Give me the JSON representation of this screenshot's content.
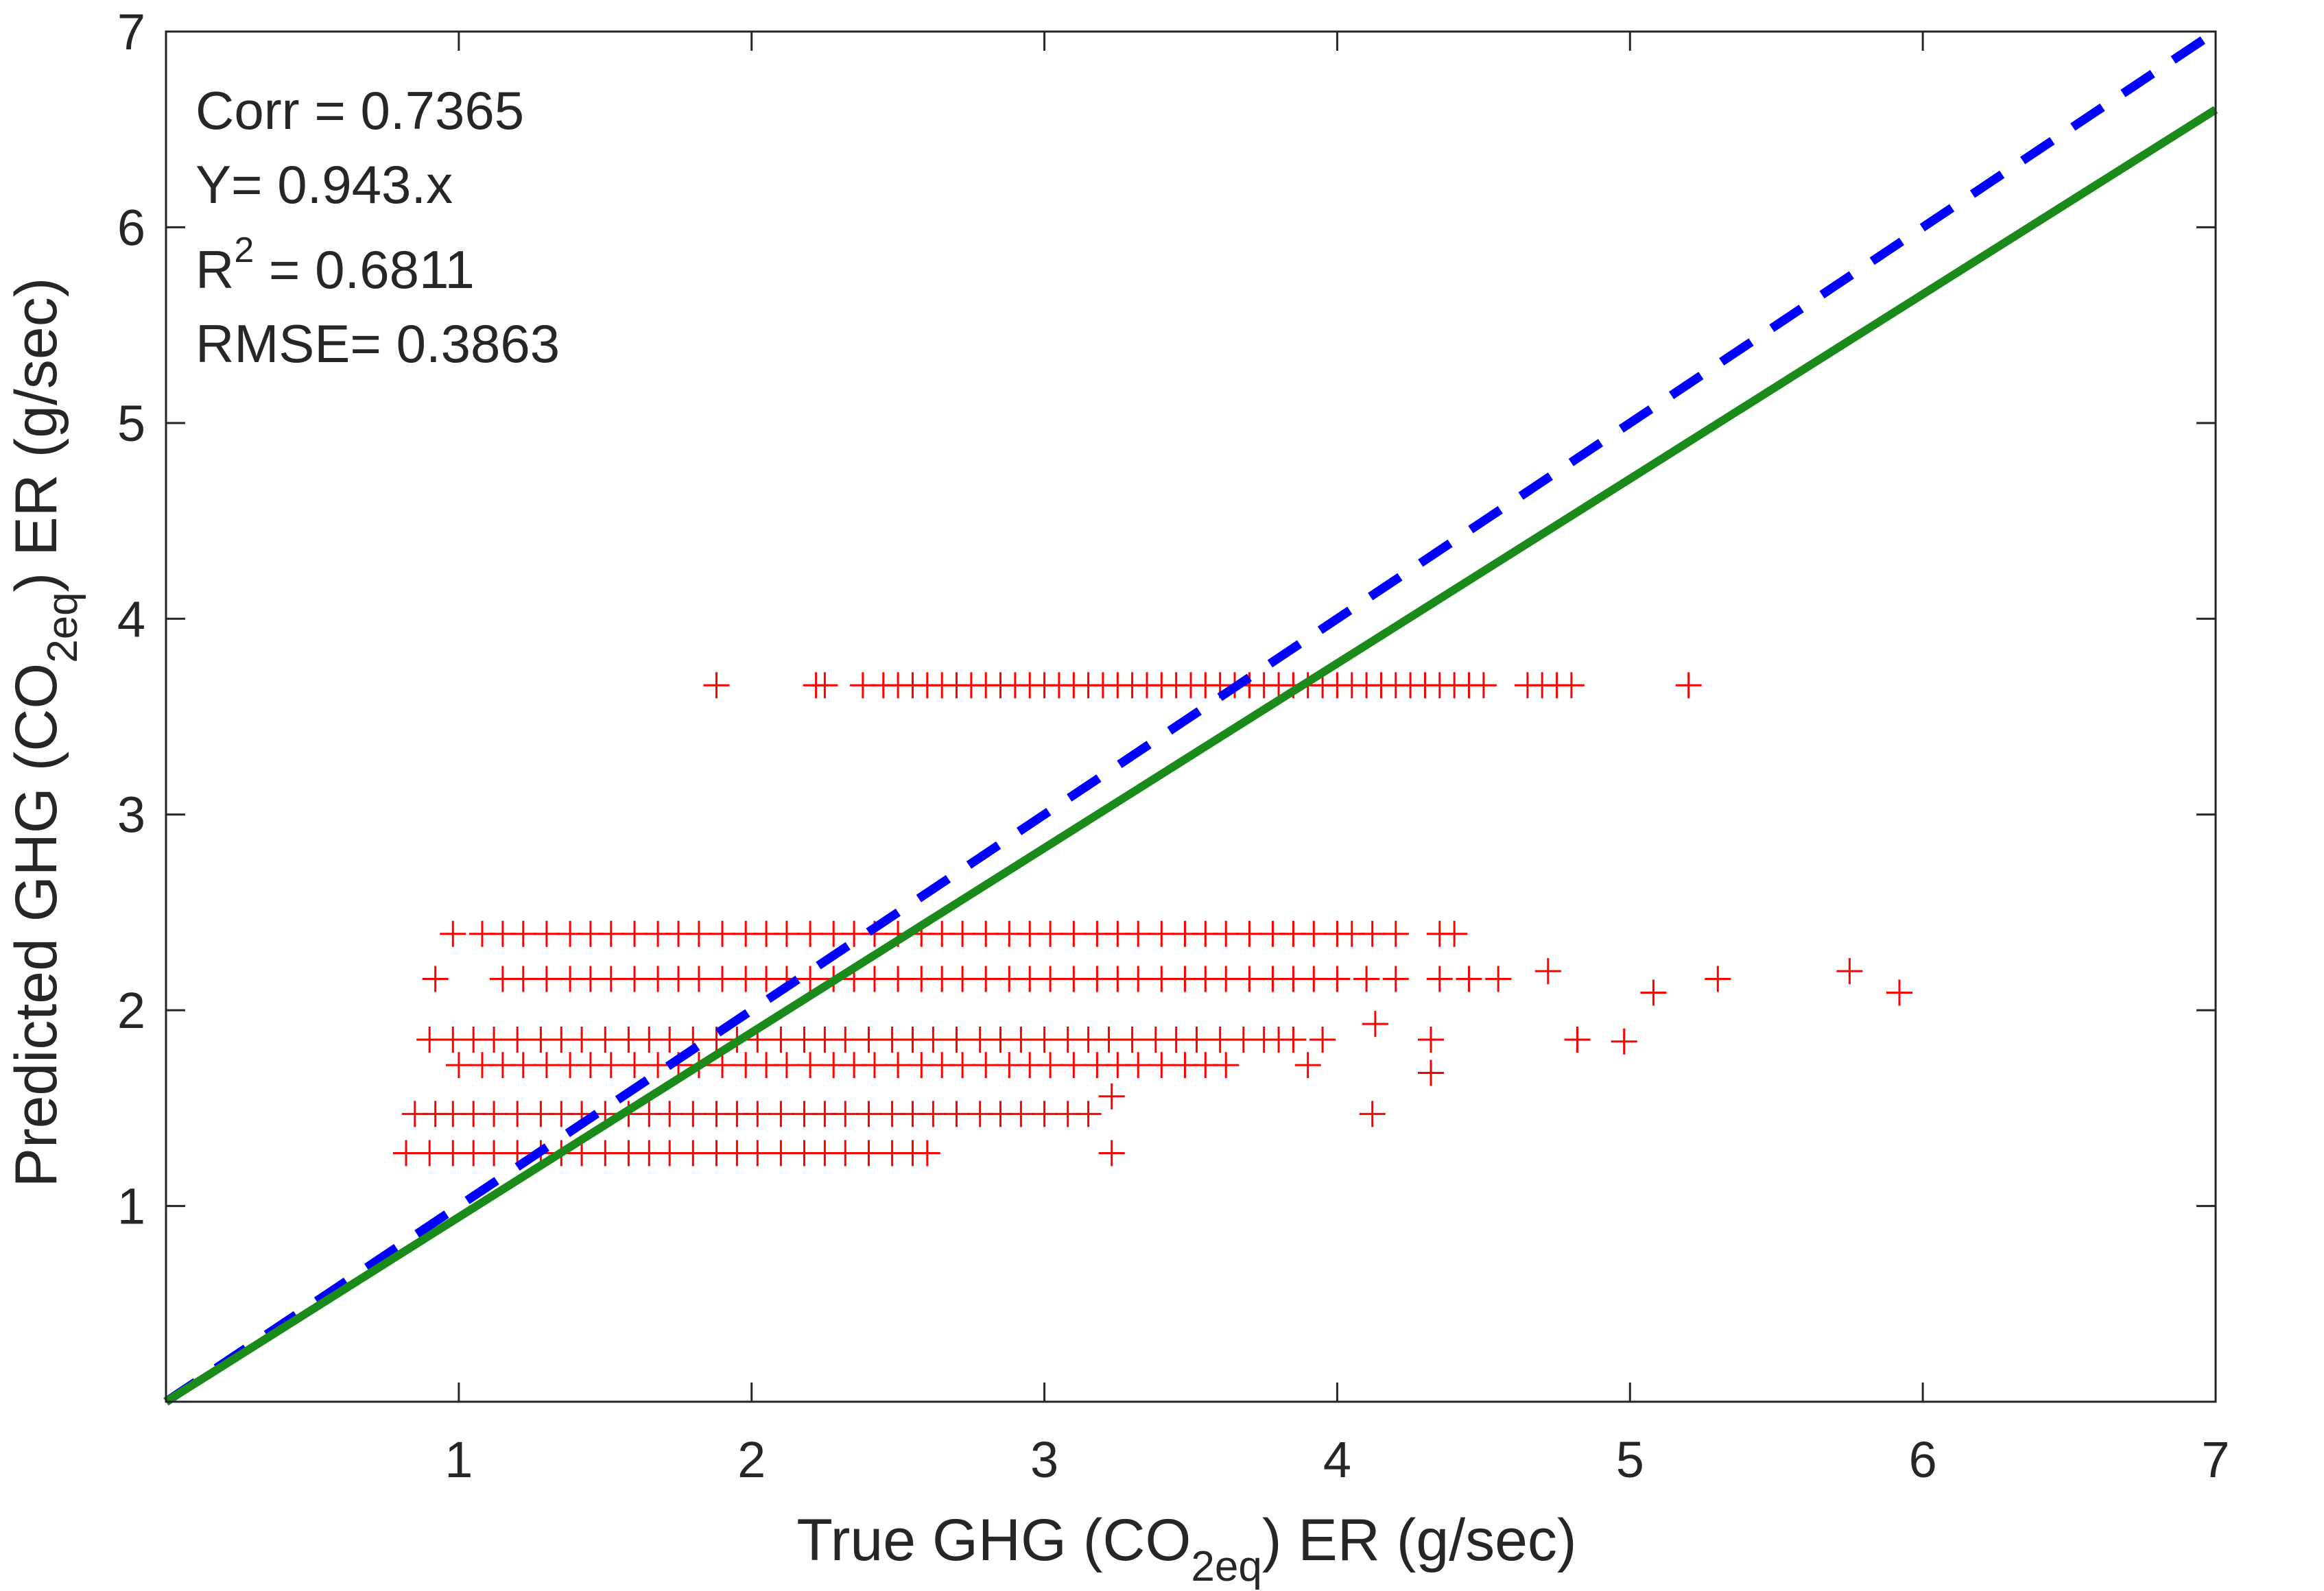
{
  "chart_data": {
    "type": "scatter",
    "title": "",
    "xlabel": {
      "pre": "True GHG (CO",
      "sub": "2eq",
      "post": ") ER (g/sec)"
    },
    "ylabel": {
      "pre": "Predicted GHG (CO",
      "sub": "2eq",
      "post": ") ER (g/sec)"
    },
    "xlim": [
      0,
      7
    ],
    "ylim": [
      0,
      7
    ],
    "xticks": [
      1,
      2,
      3,
      4,
      5,
      6,
      7
    ],
    "yticks": [
      1,
      2,
      3,
      4,
      5,
      6,
      7
    ],
    "grid": false,
    "annotations": {
      "corr": "Corr = 0.7365",
      "fit": "Y= 0.943.x",
      "r2_pre": "R",
      "r2_sup": "2",
      "r2_post": " = 0.6811",
      "rmse": "RMSE= 0.3863"
    },
    "lines": [
      {
        "style": "dashed",
        "color": "#0000ff",
        "x": [
          0,
          7
        ],
        "y": [
          0,
          7
        ]
      },
      {
        "style": "solid",
        "color": "#1a8a1a",
        "x": [
          0,
          7
        ],
        "y": [
          0,
          6.601
        ]
      }
    ],
    "marker_color": "#ff0000",
    "series": [
      {
        "marker": "plus",
        "x": [
          1.88,
          2.22,
          2.25,
          2.38,
          2.45,
          2.5,
          2.55,
          2.6,
          2.65,
          2.7,
          2.75,
          2.8,
          2.85,
          2.9,
          2.95,
          3.0,
          3.05,
          3.1,
          3.15,
          3.2,
          3.25,
          3.3,
          3.35,
          3.4,
          3.45,
          3.5,
          3.55,
          3.6,
          3.65,
          3.7,
          3.75,
          3.8,
          3.85,
          3.9,
          3.95,
          4.0,
          4.05,
          4.1,
          4.15,
          4.2,
          4.25,
          4.3,
          4.35,
          4.4,
          4.45,
          4.5,
          4.65,
          4.7,
          4.75,
          4.8,
          5.2,
          0.98,
          1.08,
          1.15,
          1.22,
          1.3,
          1.38,
          1.45,
          1.52,
          1.6,
          1.68,
          1.75,
          1.82,
          1.9,
          1.98,
          2.05,
          2.12,
          2.2,
          2.28,
          2.35,
          2.42,
          2.5,
          2.58,
          2.65,
          2.72,
          2.8,
          2.88,
          2.95,
          3.02,
          3.1,
          3.18,
          3.25,
          3.32,
          3.4,
          3.48,
          3.55,
          3.62,
          3.7,
          3.78,
          3.85,
          3.92,
          4.0,
          4.05,
          4.12,
          4.2,
          4.35,
          4.4,
          0.92,
          1.15,
          1.22,
          1.3,
          1.38,
          1.45,
          1.52,
          1.6,
          1.68,
          1.75,
          1.82,
          1.9,
          1.98,
          2.05,
          2.12,
          2.2,
          2.28,
          2.35,
          2.42,
          2.5,
          2.58,
          2.65,
          2.72,
          2.8,
          2.88,
          2.95,
          3.02,
          3.1,
          3.18,
          3.25,
          3.32,
          3.4,
          3.48,
          3.55,
          3.62,
          3.7,
          3.78,
          3.85,
          3.92,
          4.0,
          4.1,
          4.2,
          4.35,
          4.45,
          4.55,
          4.72,
          5.08,
          5.3,
          5.75,
          5.92,
          0.9,
          0.98,
          1.05,
          1.12,
          1.2,
          1.28,
          1.35,
          1.42,
          1.5,
          1.58,
          1.65,
          1.72,
          1.8,
          1.88,
          1.95,
          2.02,
          2.1,
          2.18,
          2.25,
          2.32,
          2.4,
          2.48,
          2.55,
          2.62,
          2.7,
          2.78,
          2.85,
          2.92,
          3.0,
          3.08,
          3.15,
          3.22,
          3.3,
          3.38,
          3.45,
          3.52,
          3.6,
          3.68,
          3.75,
          3.8,
          3.85,
          3.95,
          4.13,
          4.32,
          4.82,
          4.98,
          1.0,
          1.08,
          1.15,
          1.22,
          1.3,
          1.38,
          1.45,
          1.52,
          1.6,
          1.68,
          1.75,
          1.82,
          1.9,
          1.98,
          2.05,
          2.12,
          2.2,
          2.28,
          2.35,
          2.42,
          2.5,
          2.58,
          2.65,
          2.72,
          2.8,
          2.88,
          2.95,
          3.02,
          3.1,
          3.18,
          3.25,
          3.32,
          3.4,
          3.48,
          3.55,
          3.62,
          3.9,
          4.32,
          0.85,
          0.92,
          0.98,
          1.05,
          1.12,
          1.2,
          1.28,
          1.35,
          1.42,
          1.5,
          1.58,
          1.65,
          1.72,
          1.8,
          1.88,
          1.95,
          2.02,
          2.1,
          2.18,
          2.25,
          2.32,
          2.4,
          2.48,
          2.55,
          2.62,
          2.7,
          2.78,
          2.85,
          2.92,
          3.0,
          3.08,
          3.15,
          3.23,
          4.12,
          0.82,
          0.9,
          0.98,
          1.05,
          1.12,
          1.2,
          1.28,
          1.35,
          1.42,
          1.5,
          1.58,
          1.65,
          1.72,
          1.8,
          1.88,
          1.95,
          2.02,
          2.1,
          2.18,
          2.25,
          2.32,
          2.4,
          2.48,
          2.55,
          2.6,
          3.23
        ],
        "y": [
          3.66,
          3.66,
          3.66,
          3.66,
          3.66,
          3.66,
          3.66,
          3.66,
          3.66,
          3.66,
          3.66,
          3.66,
          3.66,
          3.66,
          3.66,
          3.66,
          3.66,
          3.66,
          3.66,
          3.66,
          3.66,
          3.66,
          3.66,
          3.66,
          3.66,
          3.66,
          3.66,
          3.66,
          3.66,
          3.66,
          3.66,
          3.66,
          3.66,
          3.66,
          3.66,
          3.66,
          3.66,
          3.66,
          3.66,
          3.66,
          3.66,
          3.66,
          3.66,
          3.66,
          3.66,
          3.66,
          3.66,
          3.66,
          3.66,
          3.66,
          3.66,
          2.39,
          2.39,
          2.39,
          2.39,
          2.39,
          2.39,
          2.39,
          2.39,
          2.39,
          2.39,
          2.39,
          2.39,
          2.39,
          2.39,
          2.39,
          2.39,
          2.39,
          2.39,
          2.39,
          2.39,
          2.39,
          2.39,
          2.39,
          2.39,
          2.39,
          2.39,
          2.39,
          2.39,
          2.39,
          2.39,
          2.39,
          2.39,
          2.39,
          2.39,
          2.39,
          2.39,
          2.39,
          2.39,
          2.39,
          2.39,
          2.39,
          2.39,
          2.39,
          2.39,
          2.39,
          2.39,
          2.16,
          2.16,
          2.16,
          2.16,
          2.16,
          2.16,
          2.16,
          2.16,
          2.16,
          2.16,
          2.16,
          2.16,
          2.16,
          2.16,
          2.16,
          2.16,
          2.16,
          2.16,
          2.16,
          2.16,
          2.16,
          2.16,
          2.16,
          2.16,
          2.16,
          2.16,
          2.16,
          2.16,
          2.16,
          2.16,
          2.16,
          2.16,
          2.16,
          2.16,
          2.16,
          2.16,
          2.16,
          2.16,
          2.16,
          2.16,
          2.16,
          2.16,
          2.16,
          2.16,
          2.16,
          2.2,
          2.09,
          2.16,
          2.2,
          2.09,
          1.85,
          1.85,
          1.85,
          1.85,
          1.85,
          1.85,
          1.85,
          1.85,
          1.85,
          1.85,
          1.85,
          1.85,
          1.85,
          1.85,
          1.85,
          1.85,
          1.85,
          1.85,
          1.85,
          1.85,
          1.85,
          1.85,
          1.85,
          1.85,
          1.85,
          1.85,
          1.85,
          1.85,
          1.85,
          1.85,
          1.85,
          1.85,
          1.85,
          1.85,
          1.85,
          1.85,
          1.85,
          1.85,
          1.85,
          1.85,
          1.85,
          1.85,
          1.93,
          1.85,
          1.85,
          1.84,
          1.72,
          1.72,
          1.72,
          1.72,
          1.72,
          1.72,
          1.72,
          1.72,
          1.72,
          1.72,
          1.72,
          1.72,
          1.72,
          1.72,
          1.72,
          1.72,
          1.72,
          1.72,
          1.72,
          1.72,
          1.72,
          1.72,
          1.72,
          1.72,
          1.72,
          1.72,
          1.72,
          1.72,
          1.72,
          1.72,
          1.72,
          1.72,
          1.72,
          1.72,
          1.72,
          1.72,
          1.72,
          1.68,
          1.47,
          1.47,
          1.47,
          1.47,
          1.47,
          1.47,
          1.47,
          1.47,
          1.47,
          1.47,
          1.47,
          1.47,
          1.47,
          1.47,
          1.47,
          1.47,
          1.47,
          1.47,
          1.47,
          1.47,
          1.47,
          1.47,
          1.47,
          1.47,
          1.47,
          1.47,
          1.47,
          1.47,
          1.47,
          1.47,
          1.47,
          1.47,
          1.56,
          1.47,
          1.27,
          1.27,
          1.27,
          1.27,
          1.27,
          1.27,
          1.27,
          1.27,
          1.27,
          1.27,
          1.27,
          1.27,
          1.27,
          1.27,
          1.27,
          1.27,
          1.27,
          1.27,
          1.27,
          1.27,
          1.27,
          1.27,
          1.27,
          1.27,
          1.27,
          1.27
        ]
      }
    ]
  }
}
